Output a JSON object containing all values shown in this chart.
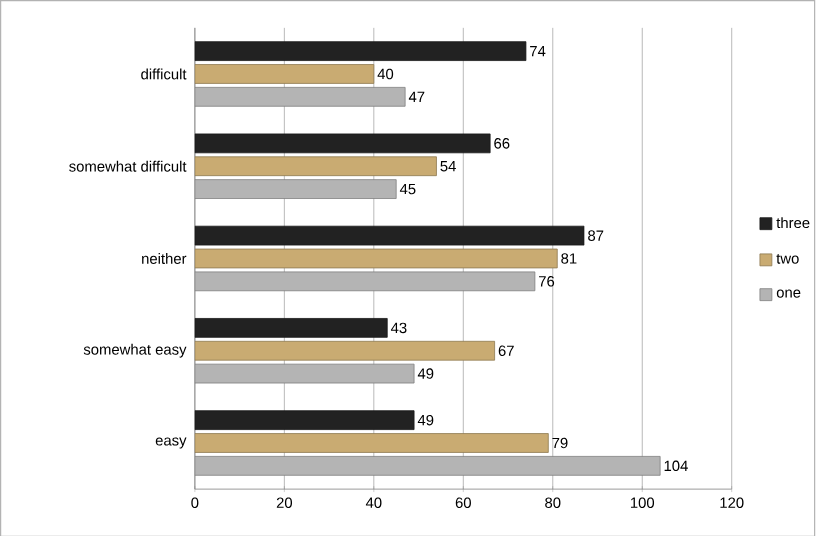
{
  "chart_data": {
    "type": "bar",
    "orientation": "horizontal",
    "categories": [
      "difficult",
      "somewhat difficult",
      "neither",
      "somewhat easy",
      "easy"
    ],
    "series": [
      {
        "name": "three",
        "color": "#222222",
        "values": [
          74,
          66,
          87,
          43,
          49
        ]
      },
      {
        "name": "two",
        "color": "#c9ab72",
        "values": [
          40,
          54,
          81,
          67,
          79
        ]
      },
      {
        "name": "one",
        "color": "#b4b4b4",
        "values": [
          47,
          45,
          76,
          49,
          104
        ]
      }
    ],
    "xlim": [
      0,
      120
    ],
    "xticks": [
      0,
      20,
      40,
      60,
      80,
      100,
      120
    ],
    "grid": "x",
    "legend": "right",
    "data_labels": true
  }
}
